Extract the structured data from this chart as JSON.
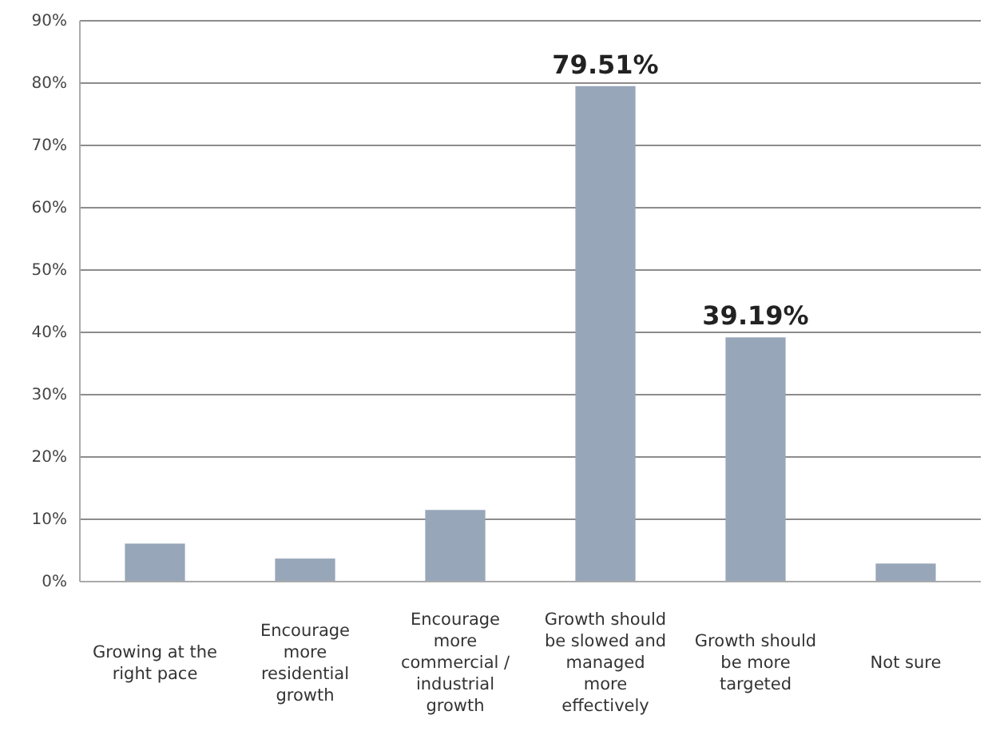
{
  "chart_data": {
    "type": "bar",
    "categories": [
      "Growing at the right pace",
      "Encourage more residential growth",
      "Encourage more commercial / industrial growth",
      "Growth should be slowed and managed more effectively",
      "Growth should be more targeted",
      "Not sure"
    ],
    "values": [
      6.1,
      3.7,
      11.5,
      79.51,
      39.19,
      2.9
    ],
    "value_labels": [
      null,
      null,
      null,
      "79.51%",
      "39.19%",
      null
    ],
    "color": "#97a6b8",
    "ylim": [
      0,
      90
    ],
    "yticks": [
      {
        "value": 0,
        "label": "0%"
      },
      {
        "value": 10,
        "label": "10%"
      },
      {
        "value": 20,
        "label": "20%"
      },
      {
        "value": 30,
        "label": "30%"
      },
      {
        "value": 40,
        "label": "40%"
      },
      {
        "value": 50,
        "label": "50%"
      },
      {
        "value": 60,
        "label": "60%"
      },
      {
        "value": 70,
        "label": "70%"
      },
      {
        "value": 80,
        "label": "80%"
      },
      {
        "value": 90,
        "label": "90%"
      }
    ],
    "grid": "y"
  }
}
